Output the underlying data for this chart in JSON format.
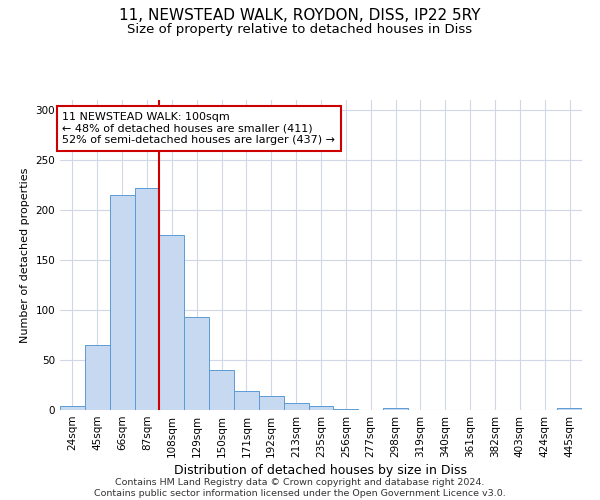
{
  "title1": "11, NEWSTEAD WALK, ROYDON, DISS, IP22 5RY",
  "title2": "Size of property relative to detached houses in Diss",
  "xlabel": "Distribution of detached houses by size in Diss",
  "ylabel": "Number of detached properties",
  "footer": "Contains HM Land Registry data © Crown copyright and database right 2024.\nContains public sector information licensed under the Open Government Licence v3.0.",
  "categories": [
    "24sqm",
    "45sqm",
    "66sqm",
    "87sqm",
    "108sqm",
    "129sqm",
    "150sqm",
    "171sqm",
    "192sqm",
    "213sqm",
    "235sqm",
    "256sqm",
    "277sqm",
    "298sqm",
    "319sqm",
    "340sqm",
    "361sqm",
    "382sqm",
    "403sqm",
    "424sqm",
    "445sqm"
  ],
  "heights": [
    4,
    65,
    215,
    222,
    175,
    93,
    40,
    19,
    14,
    7,
    4,
    1,
    0,
    2,
    0,
    0,
    0,
    0,
    0,
    0,
    2
  ],
  "bar_color": "#c6d9f0",
  "bar_edge_color": "#5b9bd5",
  "grid_color": "#d0d8e8",
  "vline_x": 3.5,
  "marker_label": "11 NEWSTEAD WALK: 100sqm\n← 48% of detached houses are smaller (411)\n52% of semi-detached houses are larger (437) →",
  "annotation_box_color": "#ffffff",
  "annotation_box_edge": "#cc0000",
  "vline_color": "#cc0000",
  "ylim": [
    0,
    310
  ],
  "yticks": [
    0,
    50,
    100,
    150,
    200,
    250,
    300
  ],
  "title1_fontsize": 11,
  "title2_fontsize": 9.5,
  "xlabel_fontsize": 9,
  "ylabel_fontsize": 8,
  "tick_fontsize": 7.5,
  "footer_fontsize": 6.8,
  "annot_fontsize": 8
}
